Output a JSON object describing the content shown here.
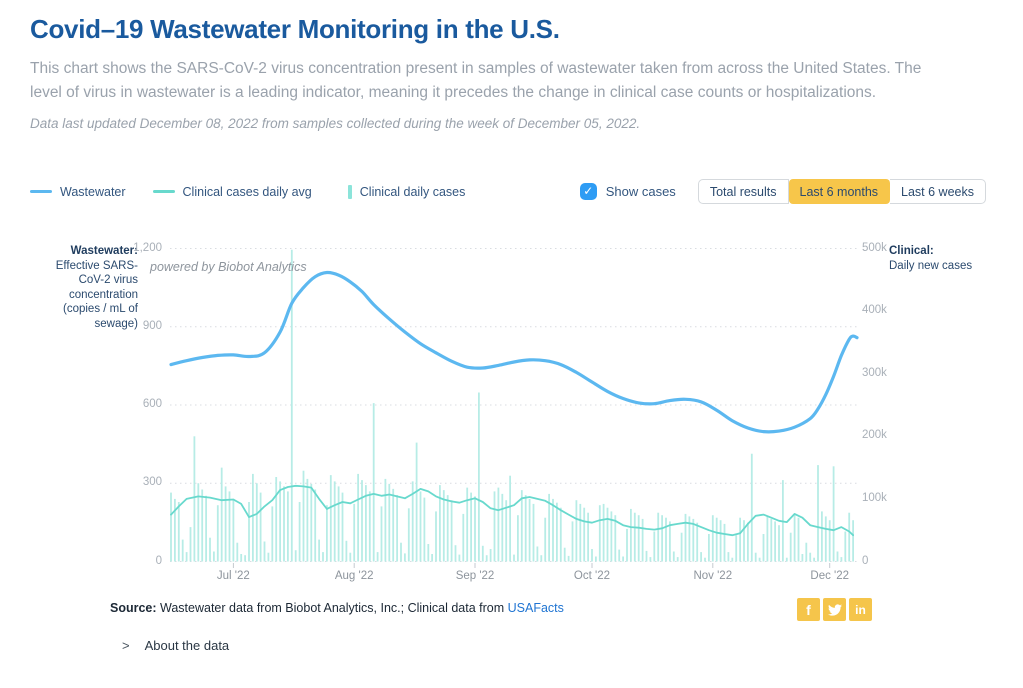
{
  "page": {
    "title": "Covid–19 Wastewater Monitoring in the U.S.",
    "description": "This chart shows the SARS-CoV-2 virus concentration present in samples of wastewater taken from across the United States. The level of virus in wastewater is a leading indicator, meaning it precedes the change in clinical case counts or hospitalizations.",
    "update_note": "Data last updated December 08, 2022 from samples collected during the week of December 05, 2022."
  },
  "legend": [
    {
      "label": "Wastewater",
      "type": "line",
      "color": "#5cb8f0"
    },
    {
      "label": "Clinical cases daily avg",
      "type": "line",
      "color": "#68d9cd"
    },
    {
      "label": "Clinical daily cases",
      "type": "bar",
      "color": "#8ce4da"
    }
  ],
  "controls": {
    "show_cases_label": "Show cases",
    "show_cases_checked": true,
    "checkbox_color": "#2e9cf4",
    "active_button_color": "#f7c64a",
    "range_buttons": [
      {
        "label": "Total results",
        "active": false
      },
      {
        "label": "Last 6 months",
        "active": true
      },
      {
        "label": "Last 6 weeks",
        "active": false
      }
    ]
  },
  "icons": {
    "checkbox_check": "✓",
    "about_chevron": ">",
    "facebook_glyph": "f",
    "linkedin_glyph": "in"
  },
  "chart": {
    "watermark": "powered by Biobot Analytics",
    "left_axis": {
      "title_bold": "Wastewater:",
      "title_rest": "Effective SARS-CoV-2 virus concentration (copies / mL of sewage)",
      "ticks": [
        "1,200",
        "900",
        "600",
        "300",
        "0"
      ],
      "tick_values": [
        1200,
        900,
        600,
        300,
        0
      ]
    },
    "right_axis": {
      "title_bold": "Clinical:",
      "title_rest": "Daily new cases",
      "ticks": [
        "500k",
        "400k",
        "300k",
        "200k",
        "100k",
        "0"
      ],
      "tick_values_k": [
        500,
        400,
        300,
        200,
        100,
        0
      ]
    }
  },
  "chart_data": {
    "type": "line+bar, dual y-axis time series",
    "x_start": "2022-06-15",
    "x_end": "2022-12-08",
    "total_days": 176,
    "left_ylim": [
      0,
      1200
    ],
    "right_ylim_k": [
      0,
      500
    ],
    "grid": "horizontal dotted at left-axis ticks",
    "x_month_ticks": [
      {
        "label": "Jul '22",
        "day": 16
      },
      {
        "label": "Aug '22",
        "day": 47
      },
      {
        "label": "Sep '22",
        "day": 78
      },
      {
        "label": "Oct '22",
        "day": 108
      },
      {
        "label": "Nov '22",
        "day": 139
      },
      {
        "label": "Dec '22",
        "day": 169
      }
    ],
    "wastewater": {
      "name": "Wastewater",
      "axis": "left",
      "unit": "copies / mL of sewage",
      "color": "#5cb8f0",
      "points": [
        [
          0,
          755
        ],
        [
          4,
          770
        ],
        [
          8,
          782
        ],
        [
          12,
          790
        ],
        [
          16,
          792
        ],
        [
          20,
          786
        ],
        [
          24,
          800
        ],
        [
          28,
          880
        ],
        [
          31,
          990
        ],
        [
          34,
          1050
        ],
        [
          37,
          1092
        ],
        [
          40,
          1108
        ],
        [
          43,
          1098
        ],
        [
          46,
          1072
        ],
        [
          49,
          1035
        ],
        [
          52,
          985
        ],
        [
          56,
          930
        ],
        [
          60,
          880
        ],
        [
          64,
          835
        ],
        [
          68,
          800
        ],
        [
          72,
          768
        ],
        [
          76,
          745
        ],
        [
          80,
          742
        ],
        [
          84,
          752
        ],
        [
          88,
          765
        ],
        [
          92,
          773
        ],
        [
          96,
          770
        ],
        [
          100,
          755
        ],
        [
          104,
          725
        ],
        [
          108,
          688
        ],
        [
          112,
          652
        ],
        [
          116,
          625
        ],
        [
          120,
          608
        ],
        [
          124,
          605
        ],
        [
          128,
          617
        ],
        [
          132,
          622
        ],
        [
          136,
          612
        ],
        [
          140,
          580
        ],
        [
          144,
          540
        ],
        [
          148,
          512
        ],
        [
          152,
          498
        ],
        [
          156,
          500
        ],
        [
          160,
          515
        ],
        [
          164,
          548
        ],
        [
          166,
          585
        ],
        [
          168,
          640
        ],
        [
          170,
          710
        ],
        [
          172,
          790
        ],
        [
          174,
          852
        ],
        [
          175,
          864
        ],
        [
          176,
          858
        ]
      ]
    },
    "clinical_avg": {
      "name": "Clinical cases daily avg",
      "axis": "right",
      "unit": "cases (thousands)",
      "color": "#68d9cd",
      "points": [
        [
          0,
          75
        ],
        [
          2,
          88
        ],
        [
          4,
          100
        ],
        [
          7,
          104
        ],
        [
          10,
          102
        ],
        [
          13,
          98
        ],
        [
          16,
          99
        ],
        [
          18,
          92
        ],
        [
          20,
          71
        ],
        [
          22,
          76
        ],
        [
          24,
          88
        ],
        [
          26,
          98
        ],
        [
          28,
          114
        ],
        [
          30,
          119
        ],
        [
          32,
          121
        ],
        [
          34,
          120
        ],
        [
          36,
          118
        ],
        [
          38,
          100
        ],
        [
          40,
          84
        ],
        [
          42,
          90
        ],
        [
          44,
          95
        ],
        [
          46,
          93
        ],
        [
          48,
          99
        ],
        [
          50,
          105
        ],
        [
          52,
          108
        ],
        [
          54,
          105
        ],
        [
          56,
          107
        ],
        [
          58,
          104
        ],
        [
          60,
          101
        ],
        [
          62,
          108
        ],
        [
          64,
          116
        ],
        [
          66,
          112
        ],
        [
          68,
          104
        ],
        [
          70,
          99
        ],
        [
          72,
          96
        ],
        [
          74,
          94
        ],
        [
          76,
          98
        ],
        [
          78,
          101
        ],
        [
          80,
          95
        ],
        [
          82,
          85
        ],
        [
          84,
          82
        ],
        [
          86,
          86
        ],
        [
          88,
          90
        ],
        [
          90,
          101
        ],
        [
          92,
          103
        ],
        [
          94,
          100
        ],
        [
          96,
          97
        ],
        [
          98,
          90
        ],
        [
          100,
          82
        ],
        [
          102,
          75
        ],
        [
          104,
          68
        ],
        [
          106,
          64
        ],
        [
          108,
          62
        ],
        [
          110,
          66
        ],
        [
          112,
          68
        ],
        [
          114,
          65
        ],
        [
          116,
          58
        ],
        [
          118,
          55
        ],
        [
          120,
          54
        ],
        [
          122,
          52
        ],
        [
          124,
          51
        ],
        [
          126,
          53
        ],
        [
          128,
          58
        ],
        [
          130,
          60
        ],
        [
          132,
          62
        ],
        [
          134,
          60
        ],
        [
          136,
          55
        ],
        [
          138,
          50
        ],
        [
          140,
          46
        ],
        [
          142,
          44
        ],
        [
          144,
          42
        ],
        [
          146,
          45
        ],
        [
          148,
          60
        ],
        [
          150,
          73
        ],
        [
          152,
          75
        ],
        [
          154,
          70
        ],
        [
          156,
          65
        ],
        [
          158,
          63
        ],
        [
          160,
          76
        ],
        [
          162,
          70
        ],
        [
          164,
          58
        ],
        [
          166,
          55
        ],
        [
          168,
          52
        ],
        [
          170,
          50
        ],
        [
          172,
          55
        ],
        [
          174,
          48
        ],
        [
          175,
          42
        ]
      ]
    },
    "clinical_daily": {
      "name": "Clinical daily cases",
      "axis": "right",
      "unit": "cases (thousands)",
      "color": "#b7ece6",
      "start_day": 0,
      "values_k": [
        110,
        100,
        95,
        35,
        15,
        55,
        200,
        125,
        115,
        105,
        38,
        16,
        90,
        150,
        120,
        112,
        100,
        30,
        12,
        10,
        95,
        140,
        125,
        110,
        32,
        14,
        88,
        135,
        128,
        120,
        112,
        498,
        18,
        95,
        145,
        132,
        124,
        115,
        35,
        15,
        90,
        138,
        128,
        120,
        110,
        33,
        14,
        92,
        140,
        130,
        122,
        112,
        253,
        15,
        88,
        132,
        124,
        116,
        106,
        30,
        13,
        85,
        128,
        190,
        112,
        102,
        28,
        12,
        80,
        122,
        114,
        106,
        98,
        26,
        11,
        76,
        118,
        110,
        104,
        270,
        25,
        10,
        20,
        112,
        118,
        108,
        98,
        137,
        11,
        74,
        114,
        106,
        100,
        92,
        24,
        10,
        70,
        108,
        100,
        94,
        86,
        22,
        9,
        64,
        98,
        92,
        86,
        78,
        20,
        8,
        90,
        92,
        86,
        80,
        74,
        19,
        8,
        52,
        84,
        78,
        74,
        68,
        17,
        7,
        48,
        78,
        74,
        70,
        64,
        16,
        7,
        46,
        76,
        72,
        68,
        62,
        15,
        6,
        44,
        74,
        70,
        66,
        60,
        15,
        6,
        42,
        70,
        66,
        62,
        172,
        14,
        6,
        44,
        72,
        68,
        64,
        58,
        130,
        6,
        46,
        76,
        70,
        12,
        30,
        14,
        6,
        154,
        80,
        72,
        66,
        152,
        16,
        7,
        48,
        78,
        66
      ]
    }
  },
  "footer": {
    "source_bold": "Source:",
    "source_text": " Wastewater data from Biobot Analytics, Inc.; Clinical data from ",
    "source_link": "USAFacts",
    "about_toggle": "About the data"
  }
}
